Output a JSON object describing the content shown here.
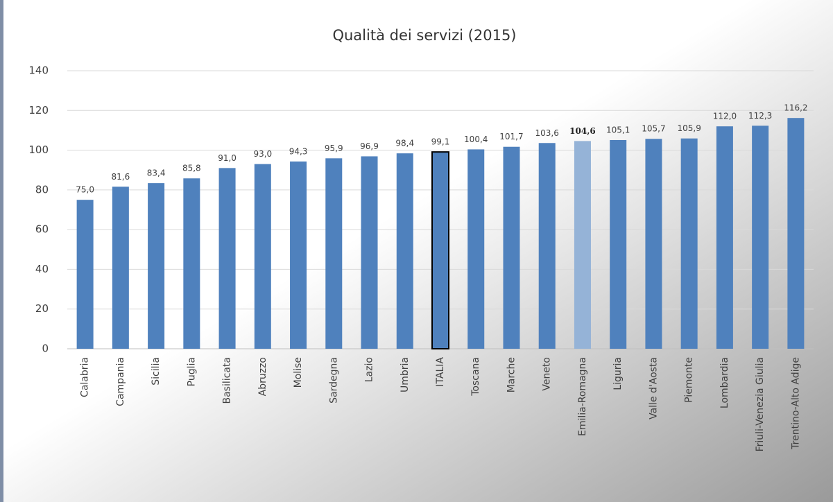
{
  "chart_data": {
    "type": "bar",
    "title": "Qualità dei servizi (2015)",
    "categories": [
      "Calabria",
      "Campania",
      "Sicilia",
      "Puglia",
      "Basilicata",
      "Abruzzo",
      "Molise",
      "Sardegna",
      "Lazio",
      "Umbria",
      "ITALIA",
      "Toscana",
      "Marche",
      "Veneto",
      "Emilia-Romagna",
      "Liguria",
      "Valle d'Aosta",
      "Piemonte",
      "Lombardia",
      "Friuli-Venezia Giulia",
      "Trentino-Alto Adige"
    ],
    "values": [
      75.0,
      81.6,
      83.4,
      85.8,
      91.0,
      93.0,
      94.3,
      95.9,
      96.9,
      98.4,
      99.1,
      100.4,
      101.7,
      103.6,
      104.6,
      105.1,
      105.7,
      105.9,
      112.0,
      112.3,
      116.2
    ],
    "value_labels": [
      "75,0",
      "81,6",
      "83,4",
      "85,8",
      "91,0",
      "93,0",
      "94,3",
      "95,9",
      "96,9",
      "98,4",
      "99,1",
      "100,4",
      "101,7",
      "103,6",
      "104,6",
      "105,1",
      "105,7",
      "105,9",
      "112,0",
      "112,3",
      "116,2"
    ],
    "colors": [
      "#4f81bd",
      "#4f81bd",
      "#4f81bd",
      "#4f81bd",
      "#4f81bd",
      "#4f81bd",
      "#4f81bd",
      "#4f81bd",
      "#4f81bd",
      "#4f81bd",
      "#4f81bd",
      "#4f81bd",
      "#4f81bd",
      "#4f81bd",
      "#95b3d7",
      "#4f81bd",
      "#4f81bd",
      "#4f81bd",
      "#4f81bd",
      "#4f81bd",
      "#4f81bd"
    ],
    "edgecolors": [
      null,
      null,
      null,
      null,
      null,
      null,
      null,
      null,
      null,
      null,
      "#000000",
      null,
      null,
      null,
      null,
      null,
      null,
      null,
      null,
      null,
      null
    ],
    "value_label_weights": [
      "normal",
      "normal",
      "normal",
      "normal",
      "normal",
      "normal",
      "normal",
      "normal",
      "normal",
      "normal",
      "normal",
      "normal",
      "normal",
      "normal",
      "bold",
      "normal",
      "normal",
      "normal",
      "normal",
      "normal",
      "normal"
    ],
    "ylim": [
      0,
      140
    ],
    "yticks": [
      0,
      20,
      40,
      60,
      80,
      100,
      120,
      140
    ],
    "grid": true
  }
}
